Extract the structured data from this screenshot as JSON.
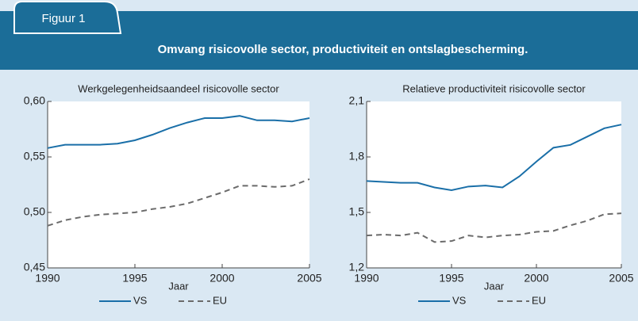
{
  "figure": {
    "label": "Figuur 1",
    "title": "Omvang risicovolle sector, productiviteit en ontslagbescherming."
  },
  "chart_data": [
    {
      "type": "line",
      "title": "Werkgelegenheidsaandeel risicovolle sector",
      "x_label": "Jaar",
      "x": [
        1990,
        1991,
        1992,
        1993,
        1994,
        1995,
        1996,
        1997,
        1998,
        1999,
        2000,
        2001,
        2002,
        2003,
        2004,
        2005
      ],
      "xlim": [
        1990,
        2005
      ],
      "xticks": [
        1990,
        1995,
        2000,
        2005
      ],
      "ylim": [
        0.45,
        0.6
      ],
      "yticks": [
        {
          "value": 0.45,
          "label": "0,45"
        },
        {
          "value": 0.5,
          "label": "0,50"
        },
        {
          "value": 0.55,
          "label": "0,55"
        },
        {
          "value": 0.6,
          "label": "0,60"
        }
      ],
      "series": [
        {
          "name": "VS",
          "color": "#1a6fa8",
          "dash": false,
          "values": [
            0.558,
            0.561,
            0.561,
            0.561,
            0.562,
            0.565,
            0.57,
            0.576,
            0.581,
            0.585,
            0.585,
            0.587,
            0.583,
            0.583,
            0.582,
            0.585
          ]
        },
        {
          "name": "EU",
          "color": "#6b6b6b",
          "dash": true,
          "values": [
            0.488,
            0.493,
            0.496,
            0.498,
            0.499,
            0.5,
            0.503,
            0.505,
            0.508,
            0.513,
            0.518,
            0.524,
            0.524,
            0.523,
            0.524,
            0.53
          ]
        }
      ]
    },
    {
      "type": "line",
      "title": "Relatieve productiviteit risicovolle sector",
      "x_label": "Jaar",
      "x": [
        1990,
        1991,
        1992,
        1993,
        1994,
        1995,
        1996,
        1997,
        1998,
        1999,
        2000,
        2001,
        2002,
        2003,
        2004,
        2005
      ],
      "xlim": [
        1990,
        2005
      ],
      "xticks": [
        1990,
        1995,
        2000,
        2005
      ],
      "ylim": [
        1.2,
        2.1
      ],
      "yticks": [
        {
          "value": 1.2,
          "label": "1,2"
        },
        {
          "value": 1.5,
          "label": "1,5"
        },
        {
          "value": 1.8,
          "label": "1,8"
        },
        {
          "value": 2.1,
          "label": "2,1"
        }
      ],
      "series": [
        {
          "name": "VS",
          "color": "#1a6fa8",
          "dash": false,
          "values": [
            1.67,
            1.665,
            1.66,
            1.66,
            1.635,
            1.62,
            1.64,
            1.645,
            1.635,
            1.695,
            1.775,
            1.85,
            1.865,
            1.91,
            1.955,
            1.975
          ]
        },
        {
          "name": "EU",
          "color": "#6b6b6b",
          "dash": true,
          "values": [
            1.375,
            1.38,
            1.375,
            1.39,
            1.34,
            1.345,
            1.375,
            1.365,
            1.375,
            1.38,
            1.395,
            1.4,
            1.43,
            1.455,
            1.49,
            1.495
          ]
        }
      ]
    }
  ]
}
